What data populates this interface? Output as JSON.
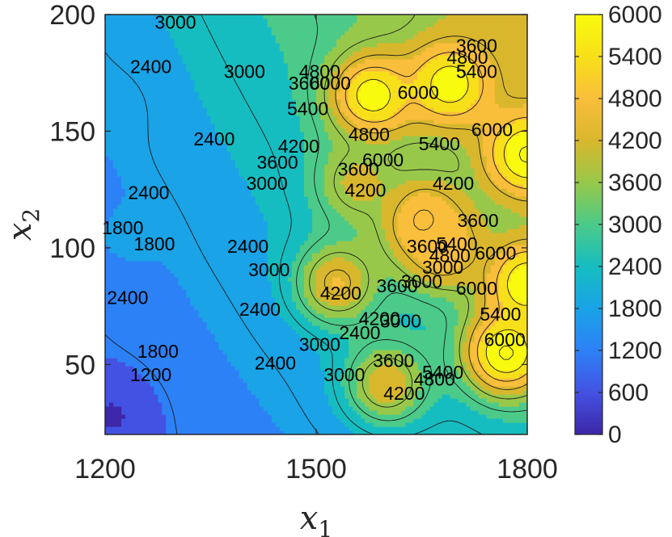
{
  "chart_data": {
    "type": "contour",
    "xlabel": "x",
    "xlabel_sub": "1",
    "ylabel": "x",
    "ylabel_sub": "2",
    "xlim": [
      1200,
      1800
    ],
    "ylim": [
      20,
      200
    ],
    "xticks": [
      1200,
      1500,
      1800
    ],
    "xtick_labels": [
      "1200",
      "1500",
      "1800"
    ],
    "yticks": [
      50,
      100,
      150,
      200
    ],
    "ytick_labels": [
      "50",
      "100",
      "150",
      "200"
    ],
    "colorbar": {
      "range": [
        0,
        6000
      ],
      "ticks": [
        0,
        600,
        1200,
        1800,
        2400,
        3000,
        3600,
        4200,
        4800,
        5400,
        6000
      ],
      "tick_labels": [
        "0",
        "600",
        "1200",
        "1800",
        "2400",
        "3000",
        "3600",
        "4200",
        "4800",
        "5400",
        "6000"
      ]
    },
    "colors": [
      "#3e26a8",
      "#4352e2",
      "#2d81f6",
      "#1aa3e6",
      "#16bdc0",
      "#4cca89",
      "#98c84a",
      "#d9b72d",
      "#f9be3b",
      "#f7e019",
      "#f9fb0e"
    ],
    "contour_levels": [
      1200,
      1800,
      2400,
      3000,
      3600,
      4200,
      4800,
      5400,
      6000
    ],
    "hotspots": [
      {
        "x": 1800,
        "y": 140,
        "value": 6100
      },
      {
        "x": 1770,
        "y": 55,
        "value": 6100
      },
      {
        "x": 1800,
        "y": 85,
        "value": 6000
      },
      {
        "x": 1580,
        "y": 165,
        "value": 5800
      },
      {
        "x": 1690,
        "y": 170,
        "value": 5800
      },
      {
        "x": 1650,
        "y": 112,
        "value": 5000
      },
      {
        "x": 1680,
        "y": 100,
        "value": 4800
      },
      {
        "x": 1530,
        "y": 85,
        "value": 4400
      },
      {
        "x": 1600,
        "y": 42,
        "value": 4200
      },
      {
        "x": 1560,
        "y": 128,
        "value": 4000
      },
      {
        "x": 1210,
        "y": 28,
        "value": 500
      },
      {
        "x": 1230,
        "y": 105,
        "value": 1700
      },
      {
        "x": 1210,
        "y": 160,
        "value": 1700
      }
    ],
    "contour_labels": [
      {
        "text": "3000",
        "x": 1300,
        "y": 196
      },
      {
        "text": "2400",
        "x": 1265,
        "y": 177
      },
      {
        "text": "3000",
        "x": 1398,
        "y": 175
      },
      {
        "text": "3600",
        "x": 1490,
        "y": 170
      },
      {
        "text": "4800",
        "x": 1505,
        "y": 175
      },
      {
        "text": "5400",
        "x": 1488,
        "y": 159
      },
      {
        "text": "6000",
        "x": 1520,
        "y": 170
      },
      {
        "text": "4800",
        "x": 1715,
        "y": 181
      },
      {
        "text": "3600",
        "x": 1728,
        "y": 186
      },
      {
        "text": "5400",
        "x": 1728,
        "y": 175
      },
      {
        "text": "6000",
        "x": 1645,
        "y": 166
      },
      {
        "text": "6000",
        "x": 1750,
        "y": 150
      },
      {
        "text": "2400",
        "x": 1355,
        "y": 146
      },
      {
        "text": "4200",
        "x": 1475,
        "y": 143
      },
      {
        "text": "3600",
        "x": 1445,
        "y": 136
      },
      {
        "text": "4800",
        "x": 1575,
        "y": 148
      },
      {
        "text": "5400",
        "x": 1675,
        "y": 144
      },
      {
        "text": "6000",
        "x": 1595,
        "y": 137
      },
      {
        "text": "3600",
        "x": 1560,
        "y": 133
      },
      {
        "text": "3000",
        "x": 1430,
        "y": 127
      },
      {
        "text": "4200",
        "x": 1570,
        "y": 124
      },
      {
        "text": "4200",
        "x": 1695,
        "y": 127
      },
      {
        "text": "2400",
        "x": 1262,
        "y": 123
      },
      {
        "text": "1800",
        "x": 1225,
        "y": 108
      },
      {
        "text": "1800",
        "x": 1270,
        "y": 101
      },
      {
        "text": "2400",
        "x": 1403,
        "y": 100
      },
      {
        "text": "3600",
        "x": 1730,
        "y": 111
      },
      {
        "text": "3600",
        "x": 1658,
        "y": 100
      },
      {
        "text": "4800",
        "x": 1690,
        "y": 96
      },
      {
        "text": "5400",
        "x": 1700,
        "y": 101
      },
      {
        "text": "6000",
        "x": 1755,
        "y": 97
      },
      {
        "text": "3000",
        "x": 1433,
        "y": 90
      },
      {
        "text": "3000",
        "x": 1680,
        "y": 91
      },
      {
        "text": "3000",
        "x": 1650,
        "y": 85
      },
      {
        "text": "4200",
        "x": 1535,
        "y": 80
      },
      {
        "text": "3600",
        "x": 1615,
        "y": 83
      },
      {
        "text": "6000",
        "x": 1728,
        "y": 82
      },
      {
        "text": "2400",
        "x": 1232,
        "y": 78
      },
      {
        "text": "2400",
        "x": 1420,
        "y": 73
      },
      {
        "text": "4200",
        "x": 1590,
        "y": 69
      },
      {
        "text": "3000",
        "x": 1620,
        "y": 68
      },
      {
        "text": "5400",
        "x": 1762,
        "y": 71
      },
      {
        "text": "2400",
        "x": 1562,
        "y": 63
      },
      {
        "text": "6000",
        "x": 1768,
        "y": 60
      },
      {
        "text": "1800",
        "x": 1275,
        "y": 55
      },
      {
        "text": "3000",
        "x": 1505,
        "y": 58
      },
      {
        "text": "2400",
        "x": 1442,
        "y": 50
      },
      {
        "text": "3000",
        "x": 1540,
        "y": 45
      },
      {
        "text": "3600",
        "x": 1610,
        "y": 51
      },
      {
        "text": "5400",
        "x": 1680,
        "y": 46
      },
      {
        "text": "4800",
        "x": 1668,
        "y": 43
      },
      {
        "text": "1200",
        "x": 1265,
        "y": 45
      },
      {
        "text": "4200",
        "x": 1625,
        "y": 37
      }
    ]
  }
}
